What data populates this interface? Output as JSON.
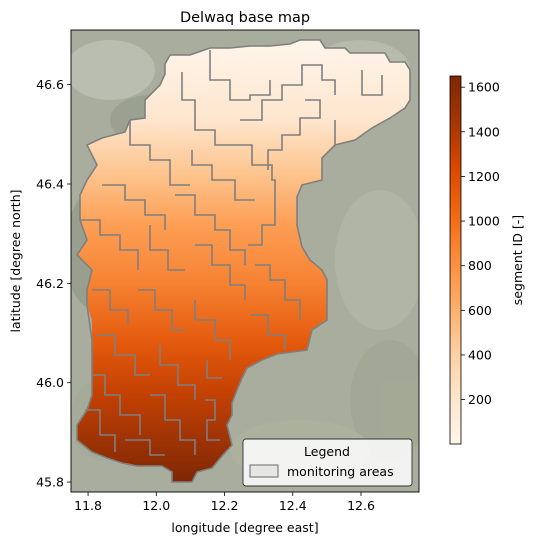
{
  "chart_data": {
    "type": "heatmap",
    "title": "Delwaq base map",
    "xlabel": "longitude [degree east]",
    "ylabel": "latitude [degree north]",
    "xlim": [
      11.75,
      12.77
    ],
    "ylim": [
      45.78,
      46.71
    ],
    "xticks": [
      11.8,
      12.0,
      12.2,
      12.4,
      12.6
    ],
    "xtick_labels": [
      "11.8",
      "12.0",
      "12.2",
      "12.4",
      "12.6"
    ],
    "yticks": [
      45.8,
      46.0,
      46.2,
      46.4,
      46.6
    ],
    "ytick_labels": [
      "45.8",
      "46.0",
      "46.2",
      "46.4",
      "46.6"
    ],
    "colorbar": {
      "label": "segment ID [-]",
      "range": [
        1,
        1650
      ],
      "ticks": [
        200,
        400,
        600,
        800,
        1000,
        1200,
        1400,
        1600
      ],
      "tick_labels": [
        "200",
        "400",
        "600",
        "800",
        "1000",
        "1200",
        "1400",
        "1600"
      ],
      "colormap": "Oranges"
    },
    "legend": {
      "title": "Legend",
      "entries": [
        "monitoring areas"
      ],
      "placement": "lower right"
    },
    "basemap": "satellite imagery",
    "grid": false
  },
  "colors": {
    "monitoring_outline": "#7f7f7f",
    "cmap_low": "#fff5eb",
    "cmap_mid": "#fd8d3c",
    "cmap_high": "#7f2704",
    "basemap_base": "#a9ad9e"
  }
}
